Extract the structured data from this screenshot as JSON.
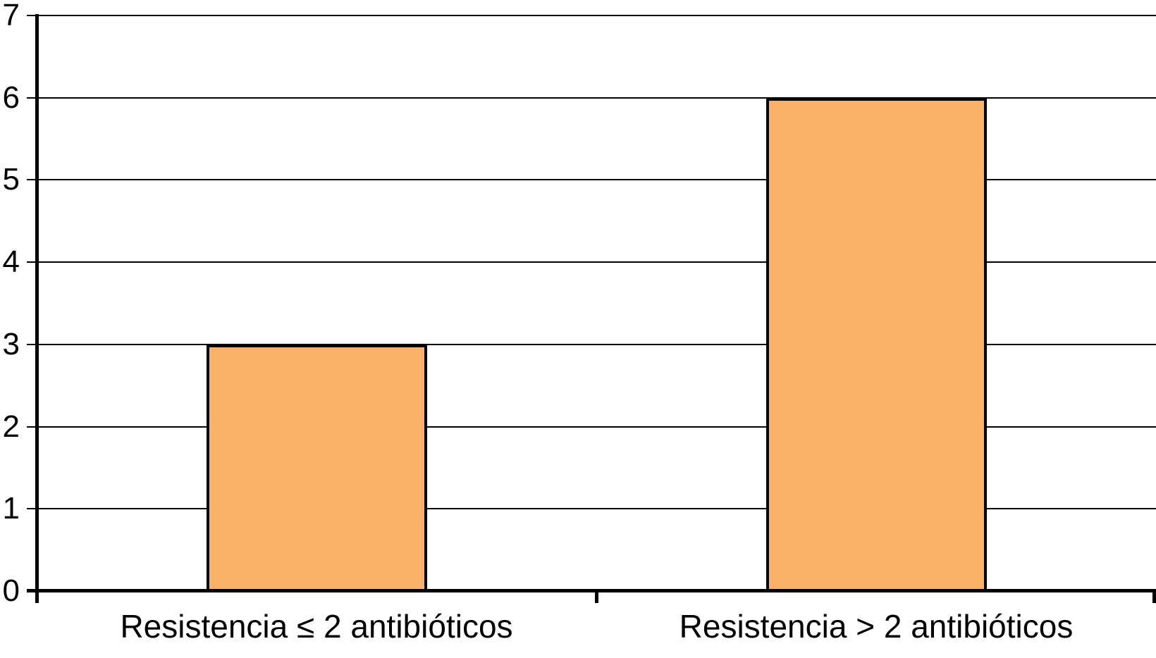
{
  "chart_data": {
    "type": "bar",
    "title": "",
    "xlabel": "",
    "ylabel": "",
    "categories": [
      "Resistencia ≤ 2 antibióticos",
      "Resistencia > 2 antibióticos"
    ],
    "values": [
      3,
      6
    ],
    "ylim": [
      0,
      7
    ],
    "yticks": [
      0,
      1,
      2,
      3,
      4,
      5,
      6,
      7
    ],
    "grid": "horizontal",
    "legend_position": "none",
    "bar_fill_color": "#FAB26B",
    "bar_border_color": "#000000",
    "axis_color": "#000000",
    "gridline_color": "#000000",
    "text_color": "#000000",
    "background_color": "#FFFFFF"
  }
}
